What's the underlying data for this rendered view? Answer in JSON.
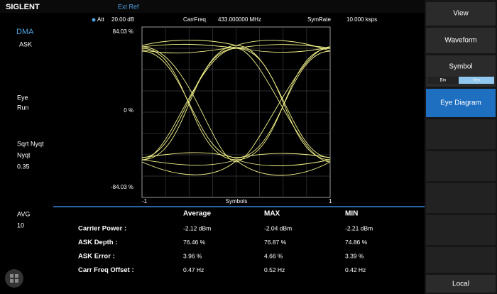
{
  "header": {
    "brand": "SIGLENT",
    "ref": "Ext Ref"
  },
  "status": {
    "att_label": "Att",
    "att_value": "20.00 dB",
    "carrfreq_label": "CarrFreq",
    "carrfreq_value": "433.000000 MHz",
    "symrate_label": "SymRate",
    "symrate_value": "10.000 ksps"
  },
  "left_panel": {
    "mode": "DMA",
    "modulation": "ASK",
    "eye": "Eye",
    "run": "Run",
    "filter_label": "Sqrt Nyqt",
    "filter": "Nyqt",
    "alpha": "0.35",
    "avg": "AVG",
    "avg_count": "10"
  },
  "plot": {
    "y_top": "84.03 %",
    "y_mid": "0 %",
    "y_bottom": "-84.03 %",
    "x_left": "-1",
    "x_label": "Symbols",
    "x_right": "1"
  },
  "table": {
    "headers": [
      "Average",
      "MAX",
      "MIN"
    ],
    "rows": [
      {
        "label": "Carrier Power :",
        "values": [
          "-2.12 dBm",
          "-2.04 dBm",
          "-2.21 dBm"
        ]
      },
      {
        "label": "ASK Depth :",
        "values": [
          "76.46 %",
          "76.87 %",
          "74.86 %"
        ]
      },
      {
        "label": "ASK Error :",
        "values": [
          "3.96 %",
          "4.66 %",
          "3.39 %"
        ]
      },
      {
        "label": "Carr Freq Offset :",
        "values": [
          "0.47 Hz",
          "0.52 Hz",
          "0.42 Hz"
        ]
      }
    ]
  },
  "menu": {
    "view": "View",
    "waveform": "Waveform",
    "symbol": "Symbol",
    "bin": "Bin",
    "hex": "Hex",
    "eye_diagram": "Eye Diagram",
    "local": "Local"
  }
}
